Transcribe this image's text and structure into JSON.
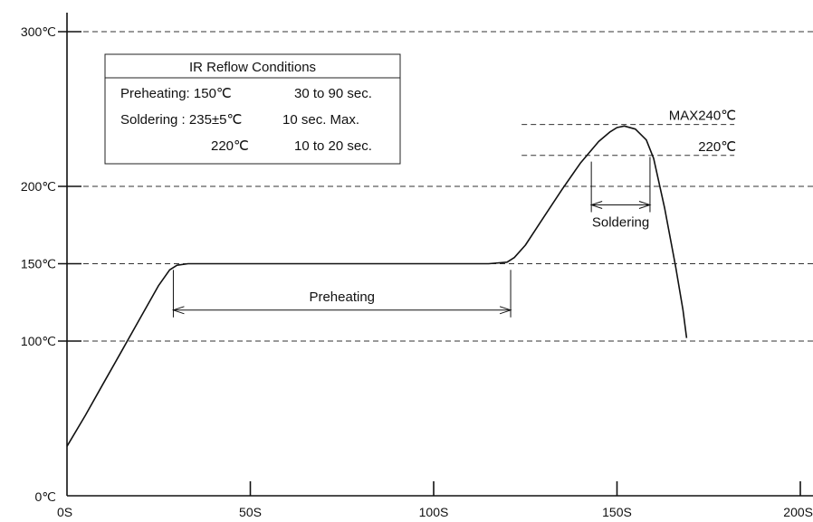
{
  "chart_data": {
    "type": "line",
    "xlabel": "",
    "ylabel": "",
    "xlim": [
      0,
      200
    ],
    "ylim": [
      0,
      300
    ],
    "grid": "dashed horizontal lines at 100, 150, 200, 300",
    "x_ticks": [
      {
        "value": 0,
        "label": "0S"
      },
      {
        "value": 50,
        "label": "50S"
      },
      {
        "value": 100,
        "label": "100S"
      },
      {
        "value": 150,
        "label": "150S"
      },
      {
        "value": 200,
        "label": "200S"
      }
    ],
    "y_ticks": [
      {
        "value": 0,
        "label": "0℃"
      },
      {
        "value": 100,
        "label": "100℃"
      },
      {
        "value": 150,
        "label": "150℃"
      },
      {
        "value": 200,
        "label": "200℃"
      },
      {
        "value": 300,
        "label": "300℃"
      }
    ],
    "series": [
      {
        "x": [
          0,
          5,
          10,
          15,
          20,
          25,
          28,
          30,
          33,
          40,
          60,
          80,
          100,
          115,
          120,
          122,
          125,
          130,
          135,
          140,
          145,
          148,
          150,
          152,
          155,
          158,
          160,
          163,
          166,
          168,
          169
        ],
        "y": [
          32,
          52,
          73,
          94,
          115,
          136,
          146,
          149,
          150,
          150,
          150,
          150,
          150,
          150,
          151,
          154,
          162,
          180,
          198,
          215,
          229,
          235,
          238,
          239,
          237,
          230,
          218,
          186,
          148,
          120,
          102
        ]
      }
    ],
    "ref_lines": [
      {
        "y": 240,
        "x_range": [
          124,
          182
        ],
        "label": "MAX240℃"
      },
      {
        "y": 220,
        "x_range": [
          124,
          182
        ],
        "label": "220℃"
      }
    ],
    "annotations": [
      {
        "label": "Preheating",
        "x_range": [
          29,
          121
        ],
        "y": 120
      },
      {
        "label": "Soldering",
        "x_range": [
          143,
          159
        ],
        "y": 188
      }
    ],
    "conditions_table": {
      "title": "IR Reflow Conditions",
      "rows": [
        {
          "col1": "Preheating: 150℃",
          "col2": "30 to 90 sec."
        },
        {
          "col1": "Soldering : 235±5℃",
          "col2": "10 sec. Max."
        },
        {
          "col1": "220℃",
          "col2": "10 to 20 sec."
        }
      ]
    },
    "colors": {
      "line": "#111111",
      "grid": "#333333"
    }
  }
}
